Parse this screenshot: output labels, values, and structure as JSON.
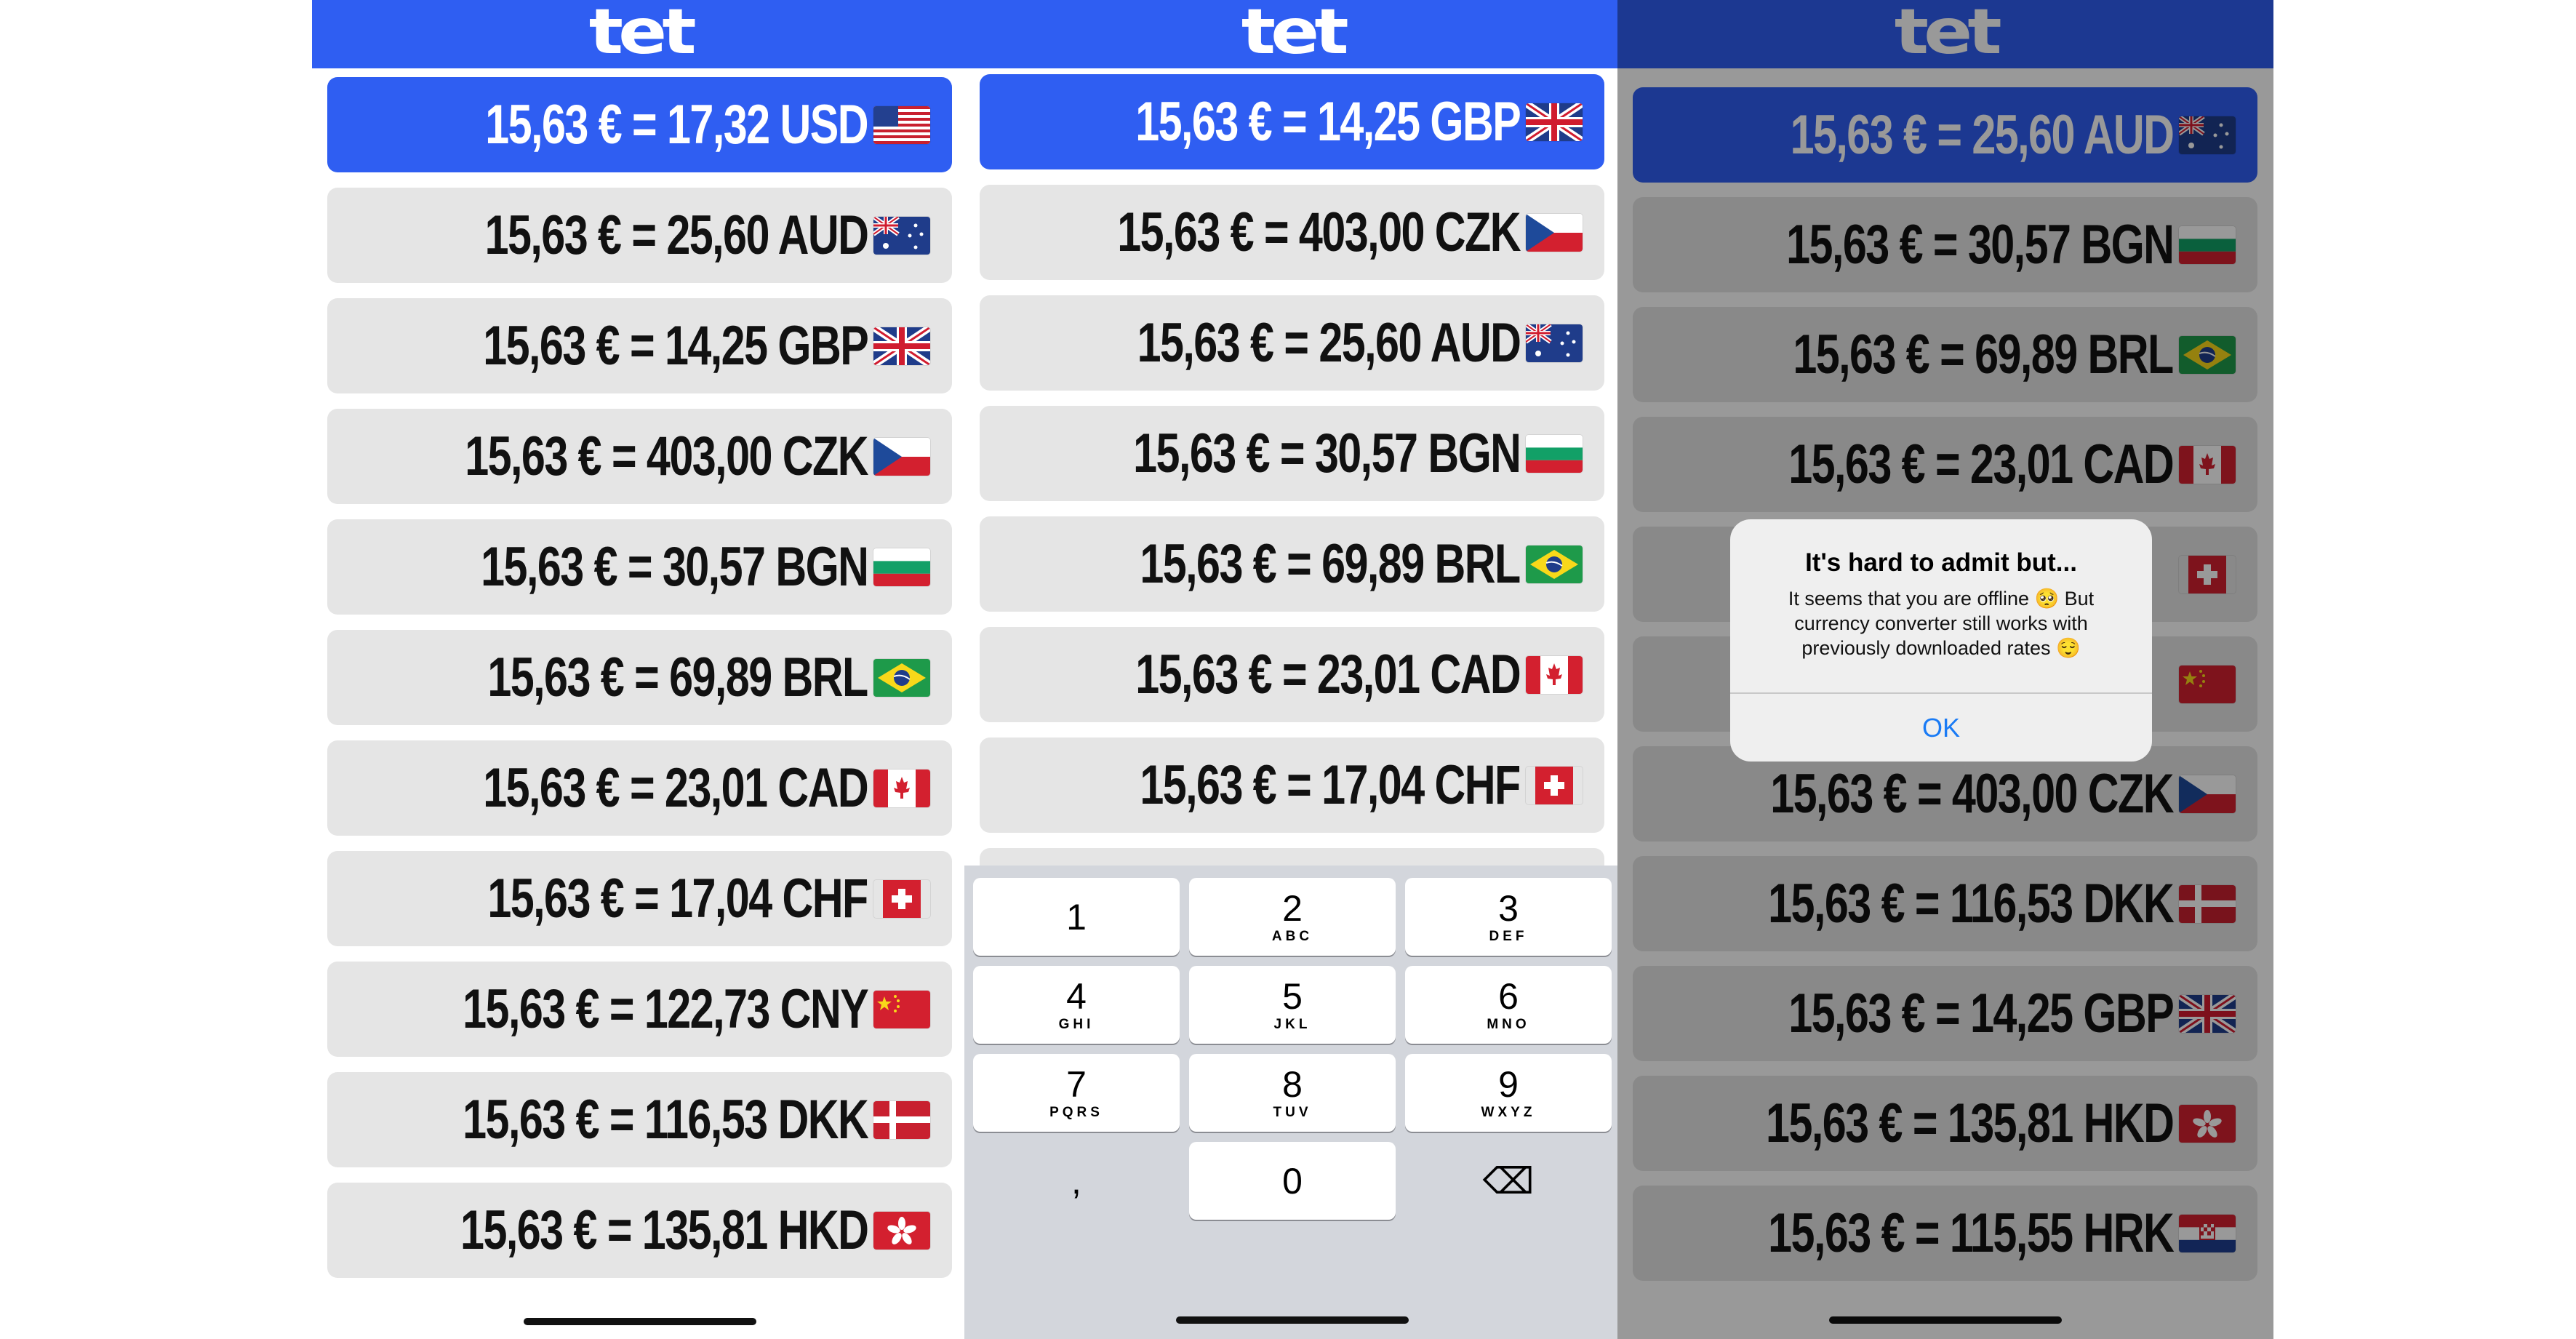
{
  "logo": "tet",
  "colors": {
    "brand_blue": "#2f5ef2",
    "row_gray": "#e5e5e5",
    "keypad_bg": "#d3d6dc",
    "alert_link": "#1a7bf5"
  },
  "panel1": {
    "rows": [
      {
        "text": "15,63 € = 17,32 USD",
        "flag": "us-flag",
        "selected": true
      },
      {
        "text": "15,63 € = 25,60 AUD",
        "flag": "au-flag"
      },
      {
        "text": "15,63 € = 14,25 GBP",
        "flag": "gb-flag"
      },
      {
        "text": "15,63 € = 403,00 CZK",
        "flag": "cz-flag"
      },
      {
        "text": "15,63 € = 30,57 BGN",
        "flag": "bg-flag"
      },
      {
        "text": "15,63 € = 69,89 BRL",
        "flag": "br-flag"
      },
      {
        "text": "15,63 € = 23,01 CAD",
        "flag": "ca-flag"
      },
      {
        "text": "15,63 € = 17,04 CHF",
        "flag": "ch-flag"
      },
      {
        "text": "15,63 € = 122,73 CNY",
        "flag": "cn-flag"
      },
      {
        "text": "15,63 € = 116,53 DKK",
        "flag": "dk-flag"
      },
      {
        "text": "15,63 € = 135,81 HKD",
        "flag": "hk-flag"
      }
    ]
  },
  "panel2": {
    "rows": [
      {
        "text": "15,63 € = 14,25 GBP",
        "flag": "gb-flag",
        "selected": true
      },
      {
        "text": "15,63 € = 403,00 CZK",
        "flag": "cz-flag"
      },
      {
        "text": "15,63 € = 25,60 AUD",
        "flag": "au-flag"
      },
      {
        "text": "15,63 € = 30,57 BGN",
        "flag": "bg-flag"
      },
      {
        "text": "15,63 € = 69,89 BRL",
        "flag": "br-flag"
      },
      {
        "text": "15,63 € = 23,01 CAD",
        "flag": "ca-flag"
      },
      {
        "text": "15,63 € = 17,04 CHF",
        "flag": "ch-flag"
      }
    ],
    "keypad": [
      {
        "num": "1",
        "letters": ""
      },
      {
        "num": "2",
        "letters": "ABC"
      },
      {
        "num": "3",
        "letters": "DEF"
      },
      {
        "num": "4",
        "letters": "GHI"
      },
      {
        "num": "5",
        "letters": "JKL"
      },
      {
        "num": "6",
        "letters": "MNO"
      },
      {
        "num": "7",
        "letters": "PQRS"
      },
      {
        "num": "8",
        "letters": "TUV"
      },
      {
        "num": "9",
        "letters": "WXYZ"
      },
      {
        "num": ",",
        "letters": ""
      },
      {
        "num": "0",
        "letters": ""
      },
      {
        "num": "⌫",
        "letters": ""
      }
    ]
  },
  "panel3": {
    "rows": [
      {
        "text": "15,63 € = 25,60 AUD",
        "flag": "au-flag",
        "selected": true
      },
      {
        "text": "15,63 € = 30,57 BGN",
        "flag": "bg-flag"
      },
      {
        "text": "15,63 € = 69,89 BRL",
        "flag": "br-flag"
      },
      {
        "text": "15,63 € = 23,01 CAD",
        "flag": "ca-flag"
      },
      {
        "text": "",
        "flag": "ch-flag"
      },
      {
        "text": "",
        "flag": "cn-flag"
      },
      {
        "text": "15,63 € = 403,00 CZK",
        "flag": "cz-flag"
      },
      {
        "text": "15,63 € = 116,53 DKK",
        "flag": "dk-flag"
      },
      {
        "text": "15,63 € = 14,25 GBP",
        "flag": "gb-flag"
      },
      {
        "text": "15,63 € = 135,81 HKD",
        "flag": "hk-flag"
      },
      {
        "text": "15,63 € = 115,55 HRK",
        "flag": "hr-flag"
      }
    ],
    "alert": {
      "title": "It's hard to admit but...",
      "message": "It seems that you are offline 🥺 But currency converter still works with previously downloaded rates 😌",
      "ok_label": "OK"
    }
  }
}
